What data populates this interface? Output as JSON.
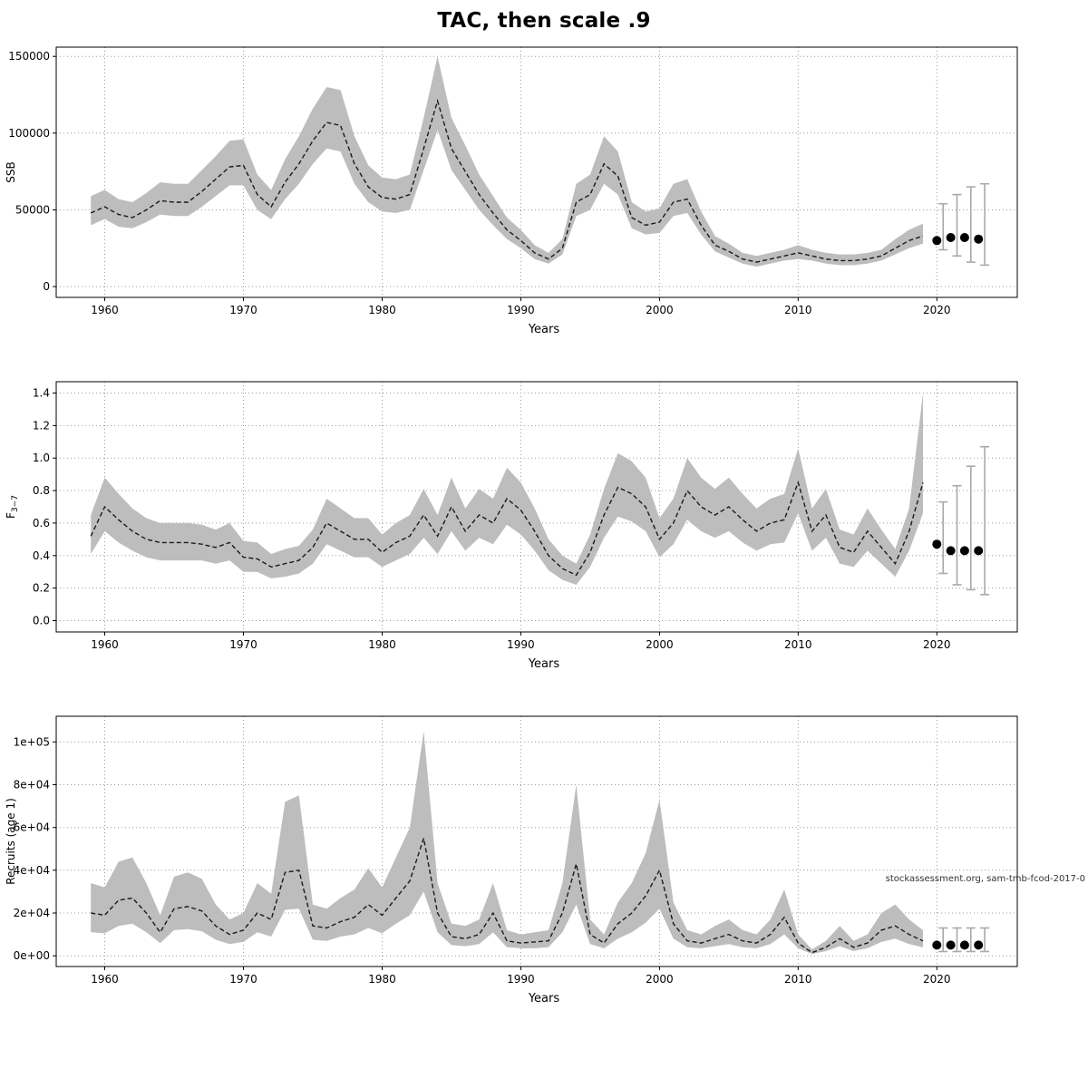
{
  "title": "TAC, then scale .9",
  "chart_data": [
    {
      "type": "line",
      "name": "ssb",
      "xlabel": "Years",
      "ylabel": "SSB",
      "grid": true,
      "xdomain": [
        1956.5,
        2025.8
      ],
      "ydomain": [
        -7000,
        156000
      ],
      "xticks": [
        1960,
        1970,
        1980,
        1990,
        2000,
        2010,
        2020
      ],
      "yticks": {
        "values": [
          0,
          50000,
          100000,
          150000
        ],
        "labels": [
          "0",
          "50000",
          "100000",
          "150000"
        ]
      },
      "years": [
        1959,
        1960,
        1961,
        1962,
        1963,
        1964,
        1965,
        1966,
        1967,
        1968,
        1969,
        1970,
        1971,
        1972,
        1973,
        1974,
        1975,
        1976,
        1977,
        1978,
        1979,
        1980,
        1981,
        1982,
        1983,
        1984,
        1985,
        1986,
        1987,
        1988,
        1989,
        1990,
        1991,
        1992,
        1993,
        1994,
        1995,
        1996,
        1997,
        1998,
        1999,
        2000,
        2001,
        2002,
        2003,
        2004,
        2005,
        2006,
        2007,
        2008,
        2009,
        2010,
        2011,
        2012,
        2013,
        2014,
        2015,
        2016,
        2017,
        2018,
        2019
      ],
      "mean": [
        48000,
        52000,
        47000,
        45000,
        50000,
        56000,
        55000,
        55000,
        62000,
        70000,
        78000,
        79000,
        60000,
        52000,
        68000,
        80000,
        95000,
        107000,
        105000,
        80000,
        65000,
        58000,
        57000,
        60000,
        90000,
        121000,
        90000,
        75000,
        60000,
        48000,
        37000,
        30000,
        22000,
        18000,
        25000,
        55000,
        60000,
        80000,
        72000,
        45000,
        40000,
        42000,
        55000,
        57000,
        40000,
        27000,
        23000,
        18000,
        16000,
        18000,
        20000,
        22000,
        20000,
        18000,
        17000,
        17000,
        18000,
        20000,
        25000,
        30000,
        33000
      ],
      "lower": [
        40000,
        44000,
        39000,
        38000,
        42000,
        47000,
        46000,
        46000,
        52000,
        59000,
        66000,
        66000,
        50000,
        44000,
        57000,
        67000,
        80000,
        90000,
        88000,
        67000,
        55000,
        49000,
        48000,
        50000,
        76000,
        102000,
        76000,
        63000,
        50000,
        40000,
        31000,
        25000,
        18000,
        15000,
        21000,
        46000,
        50000,
        67000,
        60000,
        38000,
        34000,
        35000,
        46000,
        48000,
        34000,
        23000,
        19000,
        15000,
        13000,
        15000,
        17000,
        18000,
        17000,
        15000,
        14000,
        14000,
        15000,
        17000,
        21000,
        25000,
        28000
      ],
      "upper": [
        59000,
        63000,
        57000,
        55000,
        61000,
        68000,
        67000,
        67000,
        76000,
        85000,
        95000,
        96000,
        73000,
        63000,
        83000,
        98000,
        116000,
        130000,
        128000,
        98000,
        79000,
        71000,
        70000,
        73000,
        110000,
        150000,
        110000,
        92000,
        73000,
        59000,
        45000,
        37000,
        27000,
        22000,
        31000,
        67000,
        73000,
        98000,
        88000,
        55000,
        49000,
        51000,
        67000,
        70000,
        49000,
        33000,
        28000,
        22000,
        20000,
        22000,
        24000,
        27000,
        24000,
        22000,
        21000,
        21000,
        22000,
        24000,
        31000,
        37000,
        41000
      ],
      "forecast": {
        "years": [
          2020,
          2021,
          2022,
          2023
        ],
        "values": [
          30000,
          32000,
          32000,
          31000
        ],
        "ci_lower": [
          24000,
          20000,
          16000,
          14000
        ],
        "ci_upper": [
          54000,
          60000,
          65000,
          67000
        ]
      }
    },
    {
      "type": "line",
      "name": "fbar",
      "xlabel": "Years",
      "ylabel": "F",
      "ylabel_sub": "3−7",
      "grid": true,
      "xdomain": [
        1956.5,
        2025.8
      ],
      "ydomain": [
        -0.07,
        1.47
      ],
      "xticks": [
        1960,
        1970,
        1980,
        1990,
        2000,
        2010,
        2020
      ],
      "yticks": {
        "values": [
          0,
          0.2,
          0.4,
          0.6,
          0.8,
          1.0,
          1.2,
          1.4
        ],
        "labels": [
          "0.0",
          "0.2",
          "0.4",
          "0.6",
          "0.8",
          "1.0",
          "1.2",
          "1.4"
        ]
      },
      "years": [
        1959,
        1960,
        1961,
        1962,
        1963,
        1964,
        1965,
        1966,
        1967,
        1968,
        1969,
        1970,
        1971,
        1972,
        1973,
        1974,
        1975,
        1976,
        1977,
        1978,
        1979,
        1980,
        1981,
        1982,
        1983,
        1984,
        1985,
        1986,
        1987,
        1988,
        1989,
        1990,
        1991,
        1992,
        1993,
        1994,
        1995,
        1996,
        1997,
        1998,
        1999,
        2000,
        2001,
        2002,
        2003,
        2004,
        2005,
        2006,
        2007,
        2008,
        2009,
        2010,
        2011,
        2012,
        2013,
        2014,
        2015,
        2016,
        2017,
        2018,
        2019
      ],
      "mean": [
        0.52,
        0.7,
        0.62,
        0.55,
        0.5,
        0.48,
        0.48,
        0.48,
        0.47,
        0.45,
        0.48,
        0.39,
        0.38,
        0.33,
        0.35,
        0.37,
        0.45,
        0.6,
        0.55,
        0.5,
        0.5,
        0.42,
        0.48,
        0.52,
        0.65,
        0.52,
        0.7,
        0.55,
        0.65,
        0.6,
        0.75,
        0.68,
        0.55,
        0.4,
        0.32,
        0.28,
        0.42,
        0.65,
        0.82,
        0.78,
        0.7,
        0.5,
        0.6,
        0.8,
        0.7,
        0.65,
        0.7,
        0.62,
        0.55,
        0.6,
        0.62,
        0.85,
        0.55,
        0.65,
        0.45,
        0.42,
        0.55,
        0.45,
        0.35,
        0.55,
        0.85
      ],
      "lower": [
        0.41,
        0.55,
        0.48,
        0.43,
        0.39,
        0.37,
        0.37,
        0.37,
        0.37,
        0.35,
        0.37,
        0.3,
        0.3,
        0.26,
        0.27,
        0.29,
        0.35,
        0.47,
        0.43,
        0.39,
        0.39,
        0.33,
        0.37,
        0.41,
        0.51,
        0.41,
        0.55,
        0.43,
        0.51,
        0.47,
        0.59,
        0.53,
        0.43,
        0.31,
        0.25,
        0.22,
        0.33,
        0.51,
        0.64,
        0.61,
        0.55,
        0.39,
        0.47,
        0.62,
        0.55,
        0.51,
        0.55,
        0.48,
        0.43,
        0.47,
        0.48,
        0.66,
        0.43,
        0.51,
        0.35,
        0.33,
        0.43,
        0.35,
        0.27,
        0.43,
        0.66
      ],
      "upper": [
        0.65,
        0.88,
        0.78,
        0.69,
        0.63,
        0.6,
        0.6,
        0.6,
        0.59,
        0.56,
        0.6,
        0.49,
        0.48,
        0.41,
        0.44,
        0.46,
        0.56,
        0.75,
        0.69,
        0.63,
        0.63,
        0.53,
        0.6,
        0.65,
        0.81,
        0.65,
        0.88,
        0.69,
        0.81,
        0.75,
        0.94,
        0.85,
        0.69,
        0.5,
        0.4,
        0.35,
        0.53,
        0.81,
        1.03,
        0.98,
        0.88,
        0.63,
        0.75,
        1.0,
        0.88,
        0.81,
        0.88,
        0.78,
        0.69,
        0.75,
        0.78,
        1.06,
        0.69,
        0.81,
        0.56,
        0.53,
        0.69,
        0.56,
        0.44,
        0.69,
        1.4
      ],
      "forecast": {
        "years": [
          2020,
          2021,
          2022,
          2023
        ],
        "values": [
          0.47,
          0.43,
          0.43,
          0.43
        ],
        "ci_lower": [
          0.29,
          0.22,
          0.19,
          0.16
        ],
        "ci_upper": [
          0.73,
          0.83,
          0.95,
          1.07
        ]
      }
    },
    {
      "type": "line",
      "name": "recruits",
      "xlabel": "Years",
      "ylabel": "Recruits (age 1)",
      "grid": true,
      "watermark": "stockassessment.org, sam-tmb-fcod-2017-0",
      "xdomain": [
        1956.5,
        2025.8
      ],
      "ydomain": [
        -5000,
        112000
      ],
      "xticks": [
        1960,
        1970,
        1980,
        1990,
        2000,
        2010,
        2020
      ],
      "yticks": {
        "values": [
          0,
          20000,
          40000,
          60000,
          80000,
          100000
        ],
        "labels": [
          "0e+00",
          "2e+04",
          "4e+04",
          "6e+04",
          "8e+04",
          "1e+05"
        ]
      },
      "years": [
        1959,
        1960,
        1961,
        1962,
        1963,
        1964,
        1965,
        1966,
        1967,
        1968,
        1969,
        1970,
        1971,
        1972,
        1973,
        1974,
        1975,
        1976,
        1977,
        1978,
        1979,
        1980,
        1981,
        1982,
        1983,
        1984,
        1985,
        1986,
        1987,
        1988,
        1989,
        1990,
        1991,
        1992,
        1993,
        1994,
        1995,
        1996,
        1997,
        1998,
        1999,
        2000,
        2001,
        2002,
        2003,
        2004,
        2005,
        2006,
        2007,
        2008,
        2009,
        2010,
        2011,
        2012,
        2013,
        2014,
        2015,
        2016,
        2017,
        2018,
        2019
      ],
      "mean": [
        20000,
        19000,
        26000,
        27000,
        20000,
        11000,
        22000,
        23000,
        21000,
        14000,
        10000,
        12000,
        20000,
        17000,
        39000,
        40000,
        14000,
        13000,
        16000,
        18000,
        24000,
        19000,
        27000,
        35000,
        55000,
        20000,
        9000,
        8000,
        10000,
        20000,
        7000,
        6000,
        6500,
        7000,
        20000,
        43000,
        10000,
        6000,
        15000,
        20000,
        28000,
        40000,
        15000,
        7000,
        6000,
        8000,
        10000,
        7000,
        6000,
        10000,
        18000,
        6000,
        1500,
        4000,
        8000,
        4000,
        6000,
        12000,
        14000,
        10000,
        7000
      ],
      "lower": [
        11000,
        10500,
        14000,
        15000,
        11000,
        6000,
        12000,
        12500,
        11500,
        7500,
        5500,
        6500,
        11000,
        9000,
        21500,
        22000,
        7500,
        7000,
        9000,
        10000,
        13000,
        10500,
        15000,
        19000,
        30000,
        11000,
        5000,
        4500,
        5500,
        11000,
        4000,
        3500,
        3500,
        4000,
        11000,
        24000,
        5500,
        3500,
        8000,
        11000,
        15500,
        22000,
        8000,
        4000,
        3500,
        4500,
        5500,
        4000,
        3500,
        5500,
        10000,
        3500,
        800,
        2200,
        4500,
        2200,
        3500,
        6500,
        8000,
        5500,
        4000
      ],
      "upper": [
        34000,
        32000,
        44000,
        46000,
        34000,
        19000,
        37000,
        39000,
        36000,
        24000,
        17000,
        20000,
        34000,
        29000,
        72000,
        75000,
        24000,
        22000,
        27000,
        31000,
        41000,
        32000,
        46000,
        60000,
        105000,
        34000,
        15000,
        14000,
        17000,
        34000,
        12000,
        10000,
        11000,
        12000,
        34000,
        80000,
        17000,
        10000,
        25000,
        34000,
        48000,
        73000,
        25000,
        12000,
        10000,
        14000,
        17000,
        12000,
        10000,
        17000,
        31000,
        10000,
        3000,
        7000,
        14000,
        7000,
        10000,
        20000,
        24000,
        17000,
        12000
      ],
      "forecast": {
        "years": [
          2020,
          2021,
          2022,
          2023
        ],
        "values": [
          5000,
          5000,
          5000,
          5000
        ],
        "ci_lower": [
          2000,
          2000,
          2000,
          2000
        ],
        "ci_upper": [
          13000,
          13000,
          13000,
          13000
        ]
      }
    }
  ]
}
